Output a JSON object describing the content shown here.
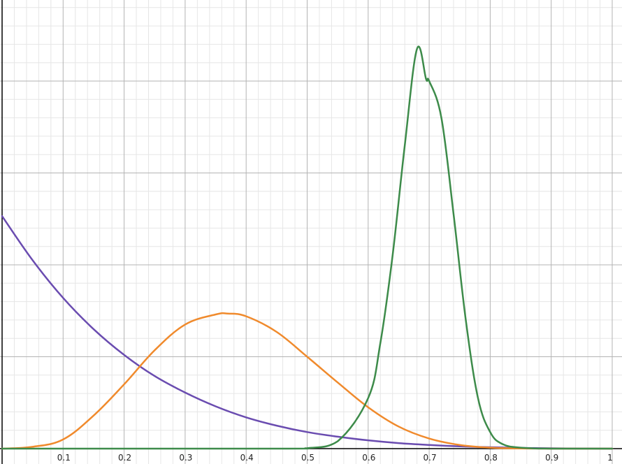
{
  "chart_data": {
    "type": "line",
    "title": "",
    "xlabel": "",
    "ylabel": "",
    "xlim": [
      -0.005,
      1.005
    ],
    "ylim": [
      -0.03,
      5.06
    ],
    "grid": true,
    "legend": "none",
    "x_ticks": [
      {
        "value": 0.1,
        "label": "0.1"
      },
      {
        "value": 0.2,
        "label": "0.2"
      },
      {
        "value": 0.3,
        "label": "0.3"
      },
      {
        "value": 0.4,
        "label": "0.4"
      },
      {
        "value": 0.5,
        "label": "0.5"
      },
      {
        "value": 0.6,
        "label": "0.6"
      },
      {
        "value": 0.7,
        "label": "0.7"
      },
      {
        "value": 0.8,
        "label": "0.8"
      },
      {
        "value": 0.9,
        "label": "0.9"
      },
      {
        "value": 1.0,
        "label": "1"
      }
    ],
    "series": [
      {
        "color": "#6a4cb0",
        "x": [
          0,
          0.05,
          0.1,
          0.15,
          0.2,
          0.25,
          0.3,
          0.35,
          0.4,
          0.45,
          0.5,
          0.55,
          0.6,
          0.65,
          0.7,
          0.75,
          0.8,
          0.85,
          0.9,
          0.95,
          1.0
        ],
        "values": [
          2.53,
          2.05,
          1.64,
          1.3,
          1.02,
          0.79,
          0.61,
          0.46,
          0.34,
          0.25,
          0.18,
          0.13,
          0.09,
          0.06,
          0.04,
          0.025,
          0.015,
          0.008,
          0.004,
          0.001,
          0
        ]
      },
      {
        "color": "#f08a2c",
        "x": [
          0,
          0.05,
          0.1,
          0.15,
          0.2,
          0.25,
          0.3,
          0.35,
          0.37,
          0.4,
          0.45,
          0.5,
          0.55,
          0.6,
          0.65,
          0.7,
          0.75,
          0.8,
          0.85,
          0.9,
          0.95,
          1.0
        ],
        "values": [
          0,
          0.02,
          0.1,
          0.36,
          0.7,
          1.07,
          1.35,
          1.46,
          1.47,
          1.44,
          1.27,
          1.0,
          0.72,
          0.45,
          0.24,
          0.11,
          0.04,
          0.01,
          0.002,
          0,
          0,
          0
        ]
      },
      {
        "color": "#3d8b4a",
        "x": [
          0,
          0.45,
          0.5,
          0.55,
          0.6,
          0.62,
          0.64,
          0.66,
          0.68,
          0.695,
          0.7,
          0.72,
          0.74,
          0.76,
          0.78,
          0.8,
          0.82,
          0.85,
          0.9,
          1.0
        ],
        "values": [
          0,
          0,
          0.005,
          0.08,
          0.55,
          1.15,
          2.1,
          3.3,
          4.35,
          4.02,
          4.0,
          3.6,
          2.55,
          1.4,
          0.55,
          0.18,
          0.05,
          0.01,
          0,
          0
        ]
      }
    ]
  }
}
